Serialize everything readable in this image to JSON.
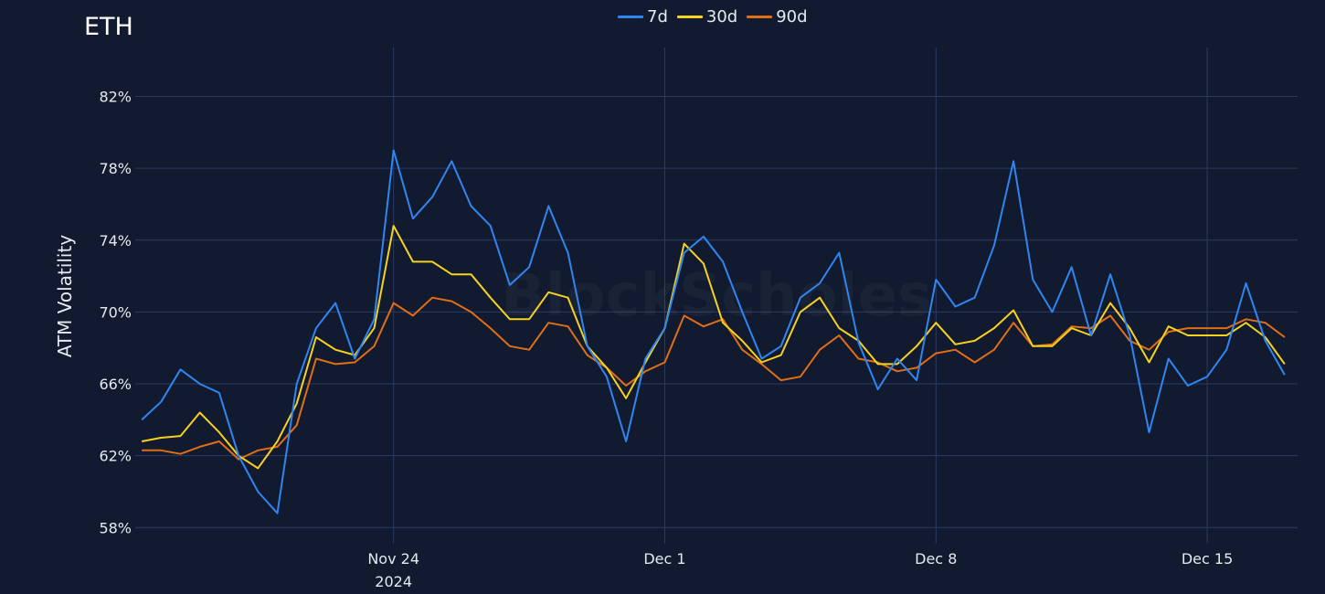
{
  "chart_data": {
    "type": "line",
    "title": "ETH",
    "ylabel": "ATM Volatility",
    "xlabel": "",
    "watermark": "BlockScholes",
    "grid": true,
    "legend_position": "top-center",
    "xlim": [
      "2024-11-17 08:00",
      "2024-12-17 08:00"
    ],
    "ylim": [
      57.1,
      83.3
    ],
    "yticks": [
      58,
      62,
      66,
      70,
      74,
      78,
      82
    ],
    "ytick_labels": [
      "58%",
      "62%",
      "66%",
      "70%",
      "74%",
      "78%",
      "82%"
    ],
    "xticks": [
      {
        "date": "2024-11-24 00:00",
        "label": "Nov 24",
        "sublabel": "2024"
      },
      {
        "date": "2024-12-01 00:00",
        "label": "Dec 1",
        "sublabel": ""
      },
      {
        "date": "2024-12-08 00:00",
        "label": "Dec 8",
        "sublabel": ""
      },
      {
        "date": "2024-12-15 00:00",
        "label": "Dec 15",
        "sublabel": ""
      }
    ],
    "x": [
      "2024-11-17 12:00",
      "2024-11-18 00:00",
      "2024-11-18 12:00",
      "2024-11-19 00:00",
      "2024-11-19 12:00",
      "2024-11-20 00:00",
      "2024-11-20 12:00",
      "2024-11-21 00:00",
      "2024-11-21 12:00",
      "2024-11-22 00:00",
      "2024-11-22 12:00",
      "2024-11-23 00:00",
      "2024-11-23 12:00",
      "2024-11-24 00:00",
      "2024-11-24 12:00",
      "2024-11-25 00:00",
      "2024-11-25 12:00",
      "2024-11-26 00:00",
      "2024-11-26 12:00",
      "2024-11-27 00:00",
      "2024-11-27 12:00",
      "2024-11-28 00:00",
      "2024-11-28 12:00",
      "2024-11-29 00:00",
      "2024-11-29 12:00",
      "2024-11-30 00:00",
      "2024-11-30 12:00",
      "2024-12-01 00:00",
      "2024-12-01 12:00",
      "2024-12-02 00:00",
      "2024-12-02 12:00",
      "2024-12-03 00:00",
      "2024-12-03 12:00",
      "2024-12-04 00:00",
      "2024-12-04 12:00",
      "2024-12-05 00:00",
      "2024-12-05 12:00",
      "2024-12-06 00:00",
      "2024-12-06 12:00",
      "2024-12-07 00:00",
      "2024-12-07 12:00",
      "2024-12-08 00:00",
      "2024-12-08 12:00",
      "2024-12-09 00:00",
      "2024-12-09 12:00",
      "2024-12-10 00:00",
      "2024-12-10 12:00",
      "2024-12-11 00:00",
      "2024-12-11 12:00",
      "2024-12-12 00:00",
      "2024-12-12 12:00",
      "2024-12-13 00:00",
      "2024-12-13 12:00",
      "2024-12-14 00:00",
      "2024-12-14 12:00",
      "2024-12-15 00:00",
      "2024-12-15 12:00",
      "2024-12-16 00:00",
      "2024-12-16 12:00",
      "2024-12-17 00:00"
    ],
    "series": [
      {
        "name": "7d",
        "color": "#2f86f2",
        "values": [
          64.0,
          65.0,
          66.8,
          66.0,
          65.5,
          62.0,
          60.0,
          58.8,
          66.0,
          69.1,
          70.5,
          67.4,
          69.6,
          79.0,
          75.2,
          76.4,
          78.4,
          75.9,
          74.8,
          71.5,
          72.5,
          75.9,
          73.3,
          68.1,
          66.4,
          62.8,
          67.4,
          69.1,
          73.3,
          74.2,
          72.8,
          70.0,
          67.4,
          68.1,
          70.8,
          71.6,
          73.3,
          68.3,
          65.7,
          67.4,
          66.2,
          71.8,
          70.3,
          70.8,
          73.7,
          78.4,
          71.8,
          70.0,
          72.5,
          68.7,
          72.1,
          68.7,
          63.3,
          67.4,
          65.9,
          66.4,
          67.9,
          71.6,
          68.4,
          66.5
        ]
      },
      {
        "name": "30d",
        "color": "#f6d21f",
        "values": [
          62.8,
          63.0,
          63.1,
          64.4,
          63.3,
          62.0,
          61.3,
          62.8,
          64.9,
          68.6,
          67.9,
          67.6,
          69.1,
          74.8,
          72.8,
          72.8,
          72.1,
          72.1,
          70.8,
          69.6,
          69.6,
          71.1,
          70.8,
          68.1,
          66.9,
          65.2,
          67.2,
          69.1,
          73.8,
          72.7,
          69.4,
          68.4,
          67.2,
          67.6,
          70.0,
          70.8,
          69.1,
          68.4,
          67.1,
          67.1,
          68.1,
          69.4,
          68.2,
          68.4,
          69.1,
          70.1,
          68.1,
          68.1,
          69.1,
          68.7,
          70.5,
          69.1,
          67.2,
          69.2,
          68.7,
          68.7,
          68.7,
          69.4,
          68.6,
          67.1
        ]
      },
      {
        "name": "90d",
        "color": "#e06e16",
        "values": [
          62.3,
          62.3,
          62.1,
          62.5,
          62.8,
          61.8,
          62.3,
          62.5,
          63.7,
          67.4,
          67.1,
          67.2,
          68.1,
          70.5,
          69.8,
          70.8,
          70.6,
          70.0,
          69.1,
          68.1,
          67.9,
          69.4,
          69.2,
          67.6,
          66.9,
          65.9,
          66.7,
          67.2,
          69.8,
          69.2,
          69.6,
          67.9,
          67.1,
          66.2,
          66.4,
          67.9,
          68.7,
          67.4,
          67.2,
          66.7,
          66.9,
          67.7,
          67.9,
          67.2,
          67.9,
          69.4,
          68.1,
          68.2,
          69.2,
          69.1,
          69.8,
          68.4,
          67.9,
          68.9,
          69.1,
          69.1,
          69.1,
          69.6,
          69.4,
          68.6
        ]
      }
    ]
  }
}
